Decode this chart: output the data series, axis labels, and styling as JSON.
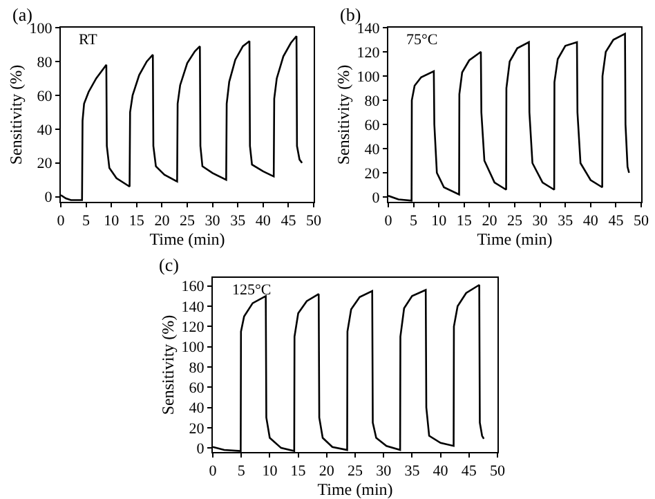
{
  "chart_data": [
    {
      "type": "line",
      "xlabel": "Time (min)",
      "ylabel": "Sensitivity (%)",
      "annotations": [
        "(a)",
        "RT"
      ],
      "xlim": [
        0,
        50
      ],
      "xticks": [
        0,
        5,
        10,
        15,
        20,
        25,
        30,
        35,
        40,
        45,
        50
      ],
      "ylim": [
        -3,
        100
      ],
      "yticks": [
        0,
        20,
        40,
        60,
        80,
        100
      ],
      "grid": false,
      "marker": "none",
      "line_style": "solid",
      "series": [
        {
          "color": "#000000",
          "x": [
            0,
            1,
            2,
            4.2,
            4.3,
            4.6,
            5.5,
            7,
            9,
            9.1,
            9.6,
            11,
            13.6,
            13.7,
            14.2,
            15.5,
            17,
            18.2,
            18.3,
            18.8,
            20.5,
            23,
            23.1,
            23.6,
            25,
            26.5,
            27.5,
            27.6,
            28,
            30,
            32.7,
            32.8,
            33.3,
            34.5,
            36,
            37.3,
            37.4,
            37.8,
            40,
            42.1,
            42.2,
            42.7,
            44,
            45.5,
            46.6,
            46.7,
            47.2,
            47.7
          ],
          "values": [
            1,
            -1,
            -2,
            -2,
            45,
            55,
            62,
            70,
            78,
            30,
            17,
            11,
            6,
            50,
            60,
            72,
            80,
            84,
            30,
            18,
            13,
            9,
            55,
            66,
            79,
            86,
            89,
            30,
            18,
            14,
            10,
            55,
            68,
            81,
            89,
            92,
            30,
            19,
            15,
            12,
            58,
            70,
            83,
            91,
            95,
            30,
            22,
            20
          ]
        }
      ]
    },
    {
      "type": "line",
      "xlabel": "Time (min)",
      "ylabel": "Sensitivity (%)",
      "annotations": [
        "(b)",
        "75°C"
      ],
      "xlim": [
        0,
        50
      ],
      "xticks": [
        0,
        5,
        10,
        15,
        20,
        25,
        30,
        35,
        40,
        45,
        50
      ],
      "ylim": [
        -4,
        140
      ],
      "yticks": [
        0,
        20,
        40,
        60,
        80,
        100,
        120,
        140
      ],
      "grid": false,
      "marker": "none",
      "line_style": "solid",
      "series": [
        {
          "color": "#000000",
          "x": [
            0,
            2,
            4.6,
            4.65,
            5.2,
            6.5,
            9,
            9.1,
            9.6,
            11,
            14,
            14.05,
            14.6,
            16,
            18.3,
            18.4,
            19,
            21,
            23.3,
            23.35,
            24,
            25.5,
            27.8,
            27.9,
            28.5,
            30.5,
            32.8,
            32.85,
            33.5,
            35,
            37.3,
            37.4,
            38,
            40,
            42.3,
            42.35,
            43,
            44.5,
            46.8,
            46.9,
            47.3,
            47.6
          ],
          "values": [
            1,
            -2,
            -3,
            80,
            92,
            99,
            104,
            60,
            20,
            8,
            2,
            85,
            103,
            113,
            120,
            70,
            30,
            12,
            6,
            90,
            112,
            123,
            128,
            70,
            28,
            12,
            6,
            95,
            114,
            125,
            128,
            70,
            28,
            14,
            8,
            100,
            120,
            130,
            135,
            60,
            25,
            20
          ]
        }
      ]
    },
    {
      "type": "line",
      "xlabel": "Time (min)",
      "ylabel": "Sensitivity (%)",
      "annotations": [
        "(c)",
        "125°C"
      ],
      "xlim": [
        0,
        50
      ],
      "xticks": [
        0,
        5,
        10,
        15,
        20,
        25,
        30,
        35,
        40,
        45,
        50
      ],
      "ylim": [
        -4,
        168
      ],
      "yticks": [
        0,
        20,
        40,
        60,
        80,
        100,
        120,
        140,
        160
      ],
      "grid": false,
      "marker": "none",
      "line_style": "solid",
      "series": [
        {
          "color": "#000000",
          "x": [
            0,
            2,
            4.9,
            4.95,
            5.5,
            7,
            9.3,
            9.4,
            10,
            12,
            14.3,
            14.35,
            15,
            16.5,
            18.6,
            18.7,
            19.3,
            21,
            23.6,
            23.65,
            24.3,
            25.8,
            28,
            28.1,
            28.7,
            30.5,
            32.9,
            32.95,
            33.6,
            35,
            37.4,
            37.5,
            38,
            40,
            42.3,
            42.35,
            43,
            44.5,
            46.8,
            46.9,
            47.3,
            47.6
          ],
          "values": [
            1,
            -2,
            -3,
            115,
            130,
            143,
            150,
            30,
            10,
            0,
            -3,
            110,
            133,
            145,
            152,
            30,
            10,
            1,
            -2,
            115,
            137,
            149,
            155,
            25,
            10,
            2,
            -2,
            110,
            138,
            150,
            156,
            40,
            12,
            5,
            2,
            120,
            140,
            153,
            161,
            25,
            12,
            9
          ]
        }
      ]
    }
  ]
}
